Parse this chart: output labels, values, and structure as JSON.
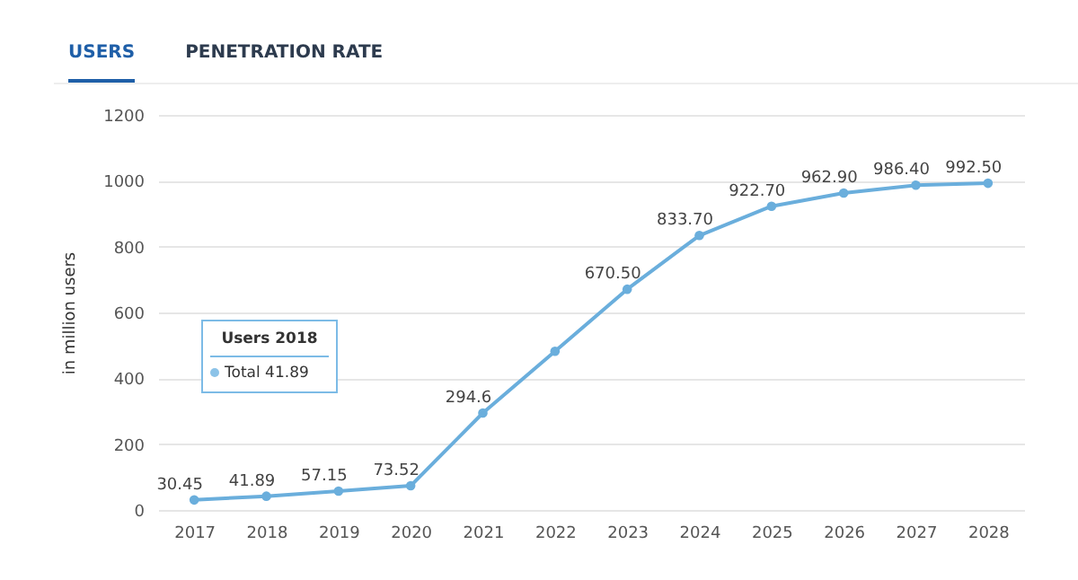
{
  "chart_data": {
    "type": "line",
    "categories": [
      "2017",
      "2018",
      "2019",
      "2020",
      "2021",
      "2022",
      "2023",
      "2024",
      "2025",
      "2026",
      "2027",
      "2028"
    ],
    "series": [
      {
        "color": "#6aaedc",
        "values": [
          30.45,
          41.89,
          57.15,
          73.52,
          294.6,
          482,
          670.5,
          833.7,
          922.7,
          962.9,
          986.4,
          992.5
        ],
        "value_labels": [
          "30.45",
          "41.89",
          "57.15",
          "73.52",
          "294.6",
          null,
          "670.50",
          "833.70",
          "922.70",
          "962.90",
          "986.40",
          "992.50"
        ]
      }
    ],
    "ylabel": "in million users",
    "ylim": [
      0,
      1200
    ],
    "yticks": [
      0,
      200,
      400,
      600,
      800,
      1000,
      1200
    ],
    "grid": "y",
    "marker": "circle",
    "annotations": [
      "USERS",
      "PENETRATION RATE",
      "Users 2018",
      "Total  41.89"
    ]
  }
}
